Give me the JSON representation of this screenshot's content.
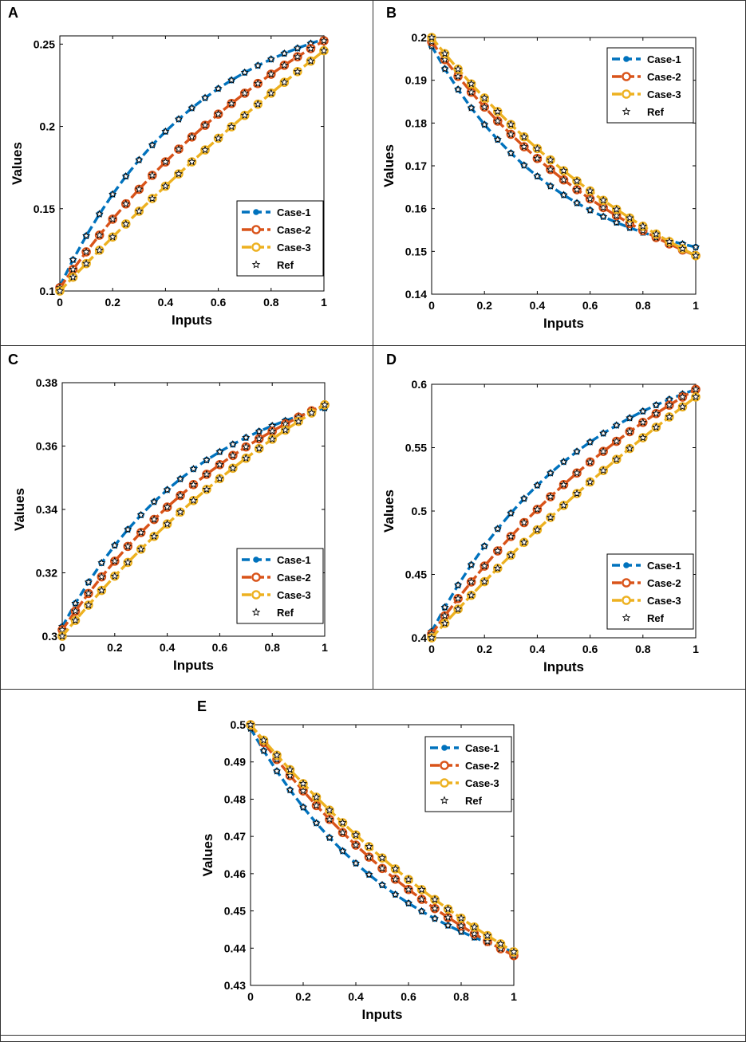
{
  "figure": {
    "x_label": "Inputs",
    "y_label": "Values"
  },
  "chart_data": [
    {
      "panel": "A",
      "type": "line",
      "x": [
        0,
        0.05,
        0.1,
        0.15,
        0.2,
        0.25,
        0.3,
        0.35,
        0.4,
        0.45,
        0.5,
        0.55,
        0.6,
        0.65,
        0.7,
        0.75,
        0.8,
        0.85,
        0.9,
        0.95,
        1
      ],
      "xlim": [
        0,
        1
      ],
      "ylim": [
        0.1,
        0.255
      ],
      "xticks": [
        0,
        0.2,
        0.4,
        0.6,
        0.8,
        1
      ],
      "xtick_labels": [
        "0",
        "0.2",
        "0.4",
        "0.6",
        "0.8",
        "1"
      ],
      "yticks": [
        0.1,
        0.15,
        0.2,
        0.25
      ],
      "ytick_labels": [
        "0.1",
        "0.15",
        "0.2",
        "0.25"
      ],
      "legend_position": "bottom-right",
      "series": [
        {
          "name": "Case-1",
          "start": 0.103,
          "end": 0.253,
          "curvature": 1.9
        },
        {
          "name": "Case-2",
          "start": 0.102,
          "end": 0.252,
          "curvature": 0.9
        },
        {
          "name": "Case-3",
          "start": 0.1,
          "end": 0.246,
          "curvature": 0.3
        }
      ],
      "legend": [
        "Case-1",
        "Case-2",
        "Case-3",
        "Ref"
      ]
    },
    {
      "panel": "B",
      "type": "line",
      "x": [
        0,
        0.05,
        0.1,
        0.15,
        0.2,
        0.25,
        0.3,
        0.35,
        0.4,
        0.45,
        0.5,
        0.55,
        0.6,
        0.65,
        0.7,
        0.75,
        0.8,
        0.85,
        0.9,
        0.95,
        1
      ],
      "xlim": [
        0,
        1
      ],
      "ylim": [
        0.14,
        0.2
      ],
      "xticks": [
        0,
        0.2,
        0.4,
        0.6,
        0.8,
        1
      ],
      "xtick_labels": [
        "0",
        "0.2",
        "0.4",
        "0.6",
        "0.8",
        "1"
      ],
      "yticks": [
        0.14,
        0.15,
        0.16,
        0.17,
        0.18,
        0.19,
        0.2
      ],
      "ytick_labels": [
        "0.14",
        "0.15",
        "0.16",
        "0.17",
        "0.18",
        "0.19",
        "0.2"
      ],
      "legend_position": "top-right",
      "series": [
        {
          "name": "Case-1",
          "start": 0.198,
          "end": 0.151,
          "curvature": 2.1
        },
        {
          "name": "Case-2",
          "start": 0.199,
          "end": 0.149,
          "curvature": 1.2
        },
        {
          "name": "Case-3",
          "start": 0.2,
          "end": 0.149,
          "curvature": 0.9
        }
      ],
      "legend": [
        "Case-1",
        "Case-2",
        "Case-3",
        "Ref"
      ]
    },
    {
      "panel": "C",
      "type": "line",
      "x": [
        0,
        0.05,
        0.1,
        0.15,
        0.2,
        0.25,
        0.3,
        0.35,
        0.4,
        0.45,
        0.5,
        0.55,
        0.6,
        0.65,
        0.7,
        0.75,
        0.8,
        0.85,
        0.9,
        0.95,
        1
      ],
      "xlim": [
        0,
        1
      ],
      "ylim": [
        0.3,
        0.38
      ],
      "xticks": [
        0,
        0.2,
        0.4,
        0.6,
        0.8,
        1
      ],
      "xtick_labels": [
        "0",
        "0.2",
        "0.4",
        "0.6",
        "0.8",
        "1"
      ],
      "yticks": [
        0.3,
        0.32,
        0.34,
        0.36,
        0.38
      ],
      "ytick_labels": [
        "0.3",
        "0.32",
        "0.34",
        "0.36",
        "0.38"
      ],
      "legend_position": "bottom-right",
      "series": [
        {
          "name": "Case-1",
          "start": 0.303,
          "end": 0.372,
          "curvature": 1.9
        },
        {
          "name": "Case-2",
          "start": 0.302,
          "end": 0.373,
          "curvature": 1.2
        },
        {
          "name": "Case-3",
          "start": 0.3,
          "end": 0.373,
          "curvature": 0.7
        }
      ],
      "legend": [
        "Case-1",
        "Case-2",
        "Case-3",
        "Ref"
      ]
    },
    {
      "panel": "D",
      "type": "line",
      "x": [
        0,
        0.05,
        0.1,
        0.15,
        0.2,
        0.25,
        0.3,
        0.35,
        0.4,
        0.45,
        0.5,
        0.55,
        0.6,
        0.65,
        0.7,
        0.75,
        0.8,
        0.85,
        0.9,
        0.95,
        1
      ],
      "xlim": [
        0,
        1
      ],
      "ylim": [
        0.4,
        0.6
      ],
      "xticks": [
        0,
        0.2,
        0.4,
        0.6,
        0.8,
        1
      ],
      "xtick_labels": [
        "0",
        "0.2",
        "0.4",
        "0.6",
        "0.8",
        "1"
      ],
      "yticks": [
        0.4,
        0.45,
        0.5,
        0.55,
        0.6
      ],
      "ytick_labels": [
        "0.4",
        "0.45",
        "0.5",
        "0.55",
        "0.6"
      ],
      "legend_position": "bottom-right",
      "series": [
        {
          "name": "Case-1",
          "start": 0.405,
          "end": 0.596,
          "curvature": 1.7
        },
        {
          "name": "Case-2",
          "start": 0.403,
          "end": 0.596,
          "curvature": 0.9
        },
        {
          "name": "Case-3",
          "start": 0.4,
          "end": 0.59,
          "curvature": 0.4
        }
      ],
      "legend": [
        "Case-1",
        "Case-2",
        "Case-3",
        "Ref"
      ]
    },
    {
      "panel": "E",
      "type": "line",
      "x": [
        0,
        0.05,
        0.1,
        0.15,
        0.2,
        0.25,
        0.3,
        0.35,
        0.4,
        0.45,
        0.5,
        0.55,
        0.6,
        0.65,
        0.7,
        0.75,
        0.8,
        0.85,
        0.9,
        0.95,
        1
      ],
      "xlim": [
        0,
        1
      ],
      "ylim": [
        0.43,
        0.5
      ],
      "xticks": [
        0,
        0.2,
        0.4,
        0.6,
        0.8,
        1
      ],
      "xtick_labels": [
        "0",
        "0.2",
        "0.4",
        "0.6",
        "0.8",
        "1"
      ],
      "yticks": [
        0.43,
        0.44,
        0.45,
        0.46,
        0.47,
        0.48,
        0.49,
        0.5
      ],
      "ytick_labels": [
        "0.43",
        "0.44",
        "0.45",
        "0.46",
        "0.47",
        "0.48",
        "0.49",
        "0.5"
      ],
      "legend_position": "top-right",
      "series": [
        {
          "name": "Case-1",
          "start": 0.499,
          "end": 0.439,
          "curvature": 1.7
        },
        {
          "name": "Case-2",
          "start": 0.5,
          "end": 0.438,
          "curvature": 1.0
        },
        {
          "name": "Case-3",
          "start": 0.5,
          "end": 0.439,
          "curvature": 0.7
        }
      ],
      "legend": [
        "Case-1",
        "Case-2",
        "Case-3",
        "Ref"
      ]
    }
  ],
  "series_colors": {
    "Case-1": "#0072BD",
    "Case-2": "#D95319",
    "Case-3": "#EDB120",
    "Ref": "#000000"
  }
}
